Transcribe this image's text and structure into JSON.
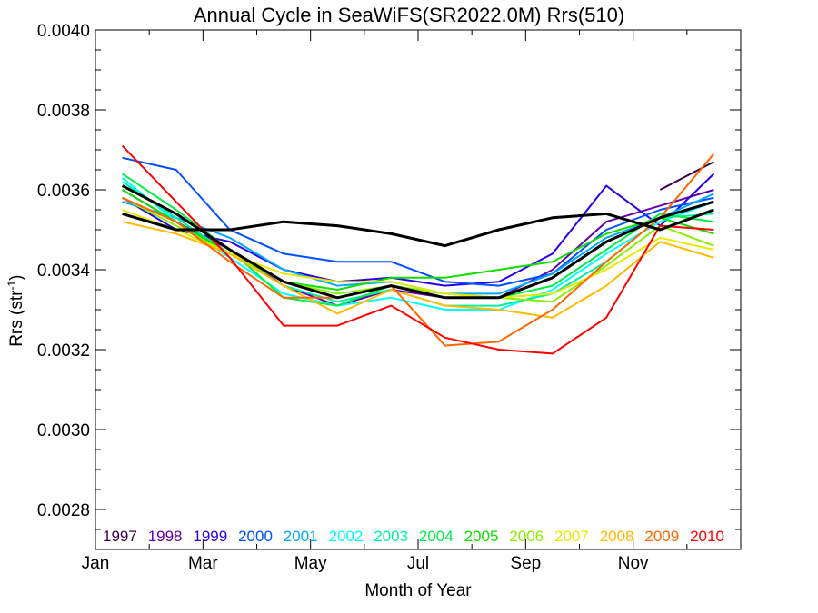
{
  "chart_data": {
    "type": "line",
    "title": "Annual Cycle in SeaWiFS(SR2022.0M) Rrs(510)",
    "xlabel": "Month of Year",
    "ylabel_main": "Rrs (str",
    "ylabel_sup": "-1",
    "ylabel_tail": ")",
    "xlim": [
      1,
      13
    ],
    "ylim": [
      0.0027,
      0.004
    ],
    "x_ticks": [
      {
        "value": 1,
        "label": "Jan"
      },
      {
        "value": 3,
        "label": "Mar"
      },
      {
        "value": 5,
        "label": "May"
      },
      {
        "value": 7,
        "label": "Jul"
      },
      {
        "value": 9,
        "label": "Sep"
      },
      {
        "value": 11,
        "label": "Nov"
      }
    ],
    "y_ticks": [
      {
        "value": 0.0028,
        "label": "0.0028"
      },
      {
        "value": 0.003,
        "label": "0.0030"
      },
      {
        "value": 0.0032,
        "label": "0.0032"
      },
      {
        "value": 0.0034,
        "label": "0.0034"
      },
      {
        "value": 0.0036,
        "label": "0.0036"
      },
      {
        "value": 0.0038,
        "label": "0.0038"
      },
      {
        "value": 0.004,
        "label": "0.0040"
      }
    ],
    "x": [
      1.5,
      2.5,
      3.5,
      4.5,
      5.5,
      6.5,
      7.5,
      8.5,
      9.5,
      10.5,
      11.5,
      12.5
    ],
    "legend_position": "bottom",
    "series": [
      {
        "name": "1997",
        "color": "#3a004f",
        "values": [
          null,
          null,
          null,
          null,
          null,
          null,
          null,
          null,
          null,
          null,
          0.0036,
          0.00367
        ]
      },
      {
        "name": "1998",
        "color": "#6600a8",
        "values": [
          0.0036,
          0.00352,
          0.00345,
          0.00336,
          0.00331,
          0.00335,
          0.00333,
          0.00333,
          0.0034,
          0.00352,
          0.00356,
          0.0036
        ]
      },
      {
        "name": "1999",
        "color": "#2a00e8",
        "values": [
          0.00358,
          0.0035,
          0.00347,
          0.0034,
          0.00337,
          0.00338,
          0.00336,
          0.00337,
          0.00344,
          0.00361,
          0.00351,
          0.00364
        ]
      },
      {
        "name": "2000",
        "color": "#0050ff",
        "values": [
          0.00368,
          0.00365,
          0.0035,
          0.00344,
          0.00342,
          0.00342,
          0.00337,
          0.00336,
          0.00339,
          0.0035,
          0.00355,
          0.00358
        ]
      },
      {
        "name": "2001",
        "color": "#00a8ff",
        "values": [
          0.00357,
          0.00353,
          0.00348,
          0.0034,
          0.00336,
          0.00337,
          0.00334,
          0.00334,
          0.00339,
          0.00348,
          0.00353,
          0.00359
        ]
      },
      {
        "name": "2002",
        "color": "#00ffff",
        "values": [
          0.00363,
          0.00352,
          0.00343,
          0.00334,
          0.00331,
          0.00333,
          0.0033,
          0.0033,
          0.00335,
          0.00344,
          0.00352,
          0.00357
        ]
      },
      {
        "name": "2003",
        "color": "#00f0a0",
        "values": [
          0.00362,
          0.00353,
          0.00344,
          0.00336,
          0.00332,
          0.00335,
          0.00331,
          0.00331,
          0.00334,
          0.00342,
          0.00353,
          0.00354
        ]
      },
      {
        "name": "2004",
        "color": "#00ee44",
        "values": [
          0.00364,
          0.00355,
          0.00345,
          0.00333,
          0.00331,
          0.00336,
          0.00334,
          0.00333,
          0.00336,
          0.00345,
          0.00354,
          0.00352
        ]
      },
      {
        "name": "2005",
        "color": "#10dd00",
        "values": [
          0.0036,
          0.00352,
          0.00344,
          0.00337,
          0.00335,
          0.00338,
          0.00338,
          0.0034,
          0.00342,
          0.00349,
          0.00353,
          0.00349
        ]
      },
      {
        "name": "2006",
        "color": "#88ee00",
        "values": [
          0.00358,
          0.00351,
          0.00344,
          0.00337,
          0.00334,
          0.00336,
          0.00334,
          0.00333,
          0.00332,
          0.00341,
          0.00351,
          0.00346
        ]
      },
      {
        "name": "2007",
        "color": "#e8e800",
        "values": [
          0.00355,
          0.0035,
          0.00344,
          0.00339,
          0.00337,
          0.00337,
          0.00334,
          0.00333,
          0.00334,
          0.0034,
          0.00348,
          0.00345
        ]
      },
      {
        "name": "2008",
        "color": "#ffbb00",
        "values": [
          0.00352,
          0.00349,
          0.00344,
          0.00336,
          0.00329,
          0.00335,
          0.00331,
          0.0033,
          0.00328,
          0.00336,
          0.00347,
          0.00343
        ]
      },
      {
        "name": "2009",
        "color": "#ff6600",
        "values": [
          0.00358,
          0.00352,
          0.00342,
          0.00333,
          0.00333,
          0.00336,
          0.00321,
          0.00322,
          0.0033,
          0.00342,
          0.00353,
          0.00369
        ]
      },
      {
        "name": "2010",
        "color": "#ff0000",
        "values": [
          0.00371,
          0.00357,
          0.00343,
          0.00326,
          0.00326,
          0.00331,
          0.00323,
          0.0032,
          0.00319,
          0.00328,
          0.00351,
          0.0035
        ]
      },
      {
        "color": "#000000",
        "values": [
          0.00354,
          0.0035,
          0.0035,
          0.00352,
          0.00351,
          0.00349,
          0.00346,
          0.0035,
          0.00353,
          0.00354,
          0.0035,
          0.00355
        ]
      },
      {
        "color": "#000000",
        "values": [
          0.00361,
          0.00354,
          0.00345,
          0.00337,
          0.00333,
          0.00336,
          0.00333,
          0.00333,
          0.00338,
          0.00347,
          0.00353,
          0.00357
        ]
      }
    ]
  }
}
